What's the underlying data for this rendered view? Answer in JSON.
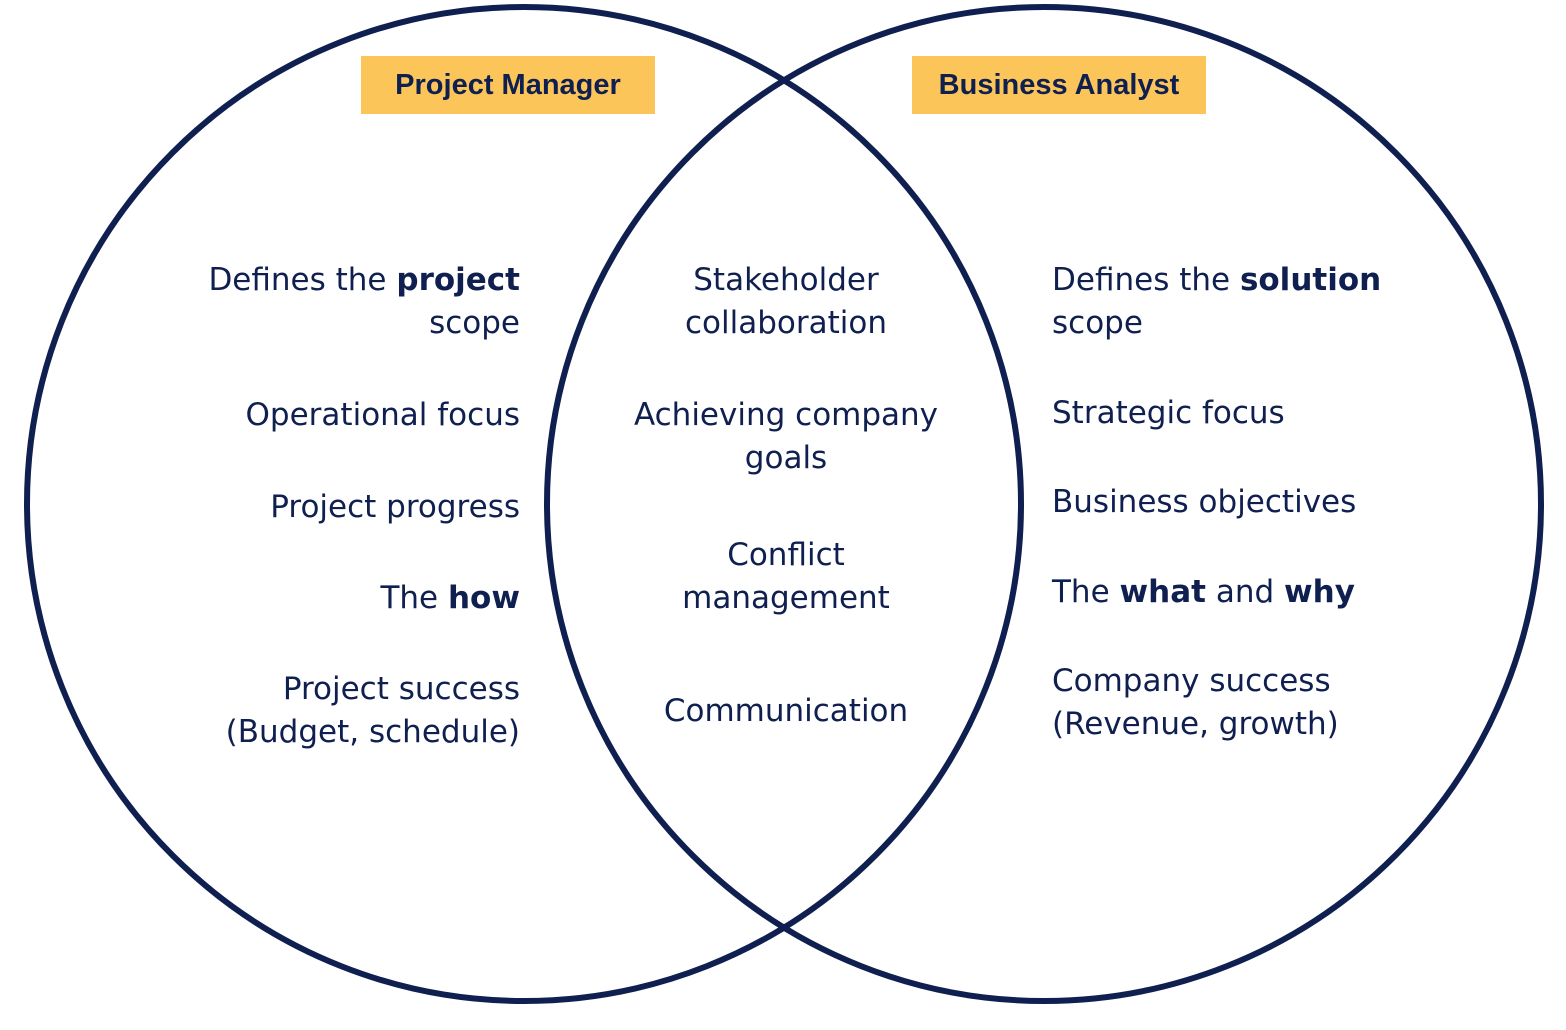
{
  "colors": {
    "circle_stroke": "#0f1f4f",
    "label_fill": "#fbc55a",
    "text": "#0f1f4f",
    "background": "#ffffff"
  },
  "left_set": {
    "title": "Project Manager",
    "items": [
      {
        "before": "Defines the ",
        "bold": "project",
        "line2": "scope"
      },
      {
        "text": "Operational focus"
      },
      {
        "text": "Project progress"
      },
      {
        "before": "The ",
        "bold": "how"
      },
      {
        "line1": "Project success",
        "line2": "(Budget, schedule)"
      }
    ]
  },
  "right_set": {
    "title": "Business Analyst",
    "items": [
      {
        "before": "Defines the ",
        "bold": "solution",
        "line2": "scope"
      },
      {
        "text": "Strategic focus"
      },
      {
        "text": "Business objectives"
      },
      {
        "before": "The ",
        "bold1": "what",
        "middle": " and ",
        "bold2": "why"
      },
      {
        "line1": "Company success",
        "line2": "(Revenue, growth)"
      }
    ]
  },
  "overlap": {
    "items": [
      {
        "line1": "Stakeholder",
        "line2": "collaboration"
      },
      {
        "line1": "Achieving company",
        "line2": "goals"
      },
      {
        "line1": "Conflict",
        "line2": "management"
      },
      {
        "text": "Communication"
      }
    ]
  }
}
